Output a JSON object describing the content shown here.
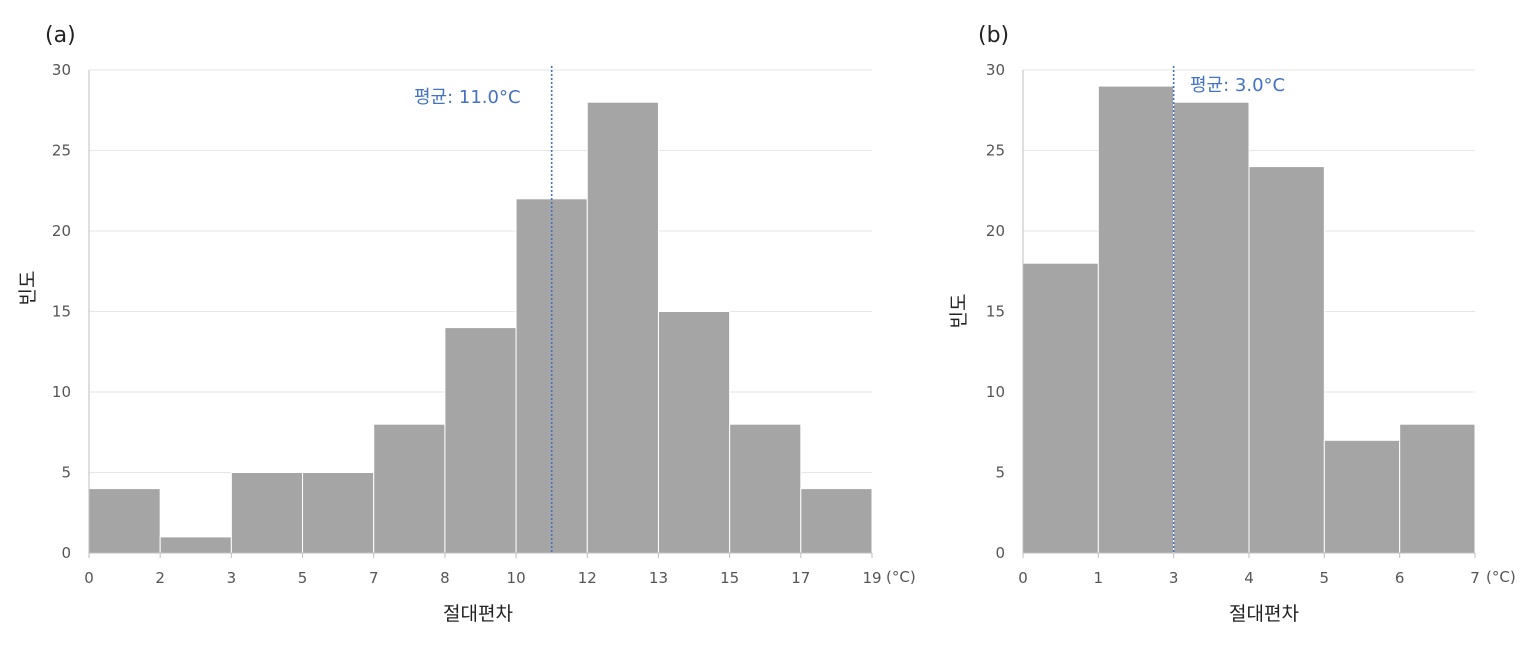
{
  "chart_data": [
    {
      "panel_label": "(a)",
      "type": "bar",
      "subtype": "histogram",
      "bin_edges": [
        0,
        2,
        3,
        5,
        7,
        8,
        10,
        12,
        13,
        15,
        17,
        19
      ],
      "tick_labels": [
        "0",
        "2",
        "3",
        "5",
        "7",
        "8",
        "10",
        "12",
        "13",
        "15",
        "17",
        "19"
      ],
      "values": [
        4,
        1,
        5,
        5,
        8,
        14,
        22,
        28,
        15,
        8,
        4
      ],
      "xlabel": "절대편차",
      "x_unit": "(°C)",
      "ylabel": "빈도",
      "ylim": [
        0,
        30
      ],
      "yticks": [
        "0",
        "5",
        "10",
        "15",
        "20",
        "25",
        "30"
      ],
      "mean": {
        "value_bin_position": 6.5,
        "label": "평균: 11.0°C"
      },
      "grid": true,
      "bar_color": "#a5a5a5",
      "mean_color": "#4472c4"
    },
    {
      "panel_label": "(b)",
      "type": "bar",
      "subtype": "histogram",
      "bin_edges": [
        0,
        1,
        3,
        4,
        5,
        6,
        7
      ],
      "tick_labels": [
        "0",
        "1",
        "3",
        "4",
        "5",
        "6",
        "7"
      ],
      "values": [
        18,
        29,
        28,
        24,
        7,
        8
      ],
      "xlabel": "절대편차",
      "x_unit": "(°C)",
      "ylabel": "빈도",
      "ylim": [
        0,
        30
      ],
      "yticks": [
        "0",
        "5",
        "10",
        "15",
        "20",
        "25",
        "30"
      ],
      "mean": {
        "value_bin_position": 2,
        "label": "평균: 3.0°C"
      },
      "grid": true,
      "bar_color": "#a5a5a5",
      "mean_color": "#4472c4"
    }
  ]
}
